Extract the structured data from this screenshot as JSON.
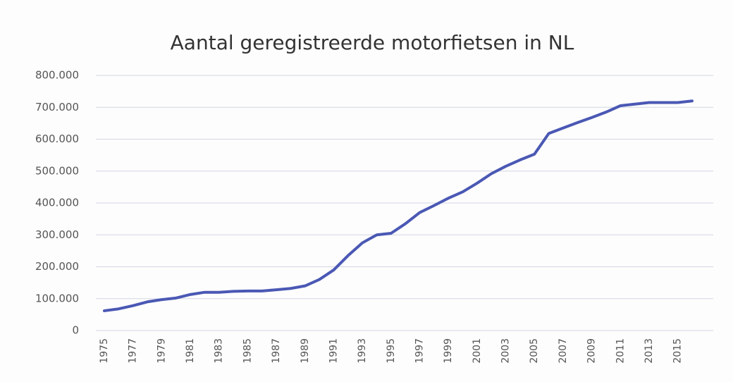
{
  "chart_data": {
    "type": "line",
    "title": "Aantal geregistreerde motorfietsen in NL",
    "categories": [
      "1975",
      null,
      "1977",
      null,
      "1979",
      null,
      "1981",
      null,
      "1983",
      null,
      "1985",
      null,
      "1987",
      null,
      "1989",
      null,
      "1991",
      null,
      "1993",
      null,
      "1995",
      null,
      "1997",
      null,
      "1999",
      null,
      "2001",
      null,
      "2003",
      null,
      "2005",
      null,
      "2007",
      null,
      "2009",
      null,
      "2011",
      null,
      "2013",
      null,
      "2015",
      null
    ],
    "series": [
      {
        "name": null,
        "color": "#4a58b4",
        "values": [
          62000,
          68000,
          78000,
          90000,
          97000,
          102000,
          113000,
          120000,
          120000,
          123000,
          124000,
          124000,
          128000,
          132000,
          140000,
          160000,
          190000,
          235000,
          275000,
          300000,
          305000,
          335000,
          370000,
          392000,
          415000,
          435000,
          462000,
          492000,
          515000,
          535000,
          553000,
          618000,
          635000,
          652000,
          668000,
          685000,
          705000,
          710000,
          715000,
          715000,
          715000,
          720000
        ]
      }
    ],
    "ylim": [
      0,
      800000
    ],
    "yticks": [
      0,
      {
        "value": 100000,
        "label": "100.000"
      },
      {
        "value": 200000,
        "label": "200.000"
      },
      {
        "value": 300000,
        "label": "300.000"
      },
      {
        "value": 400000,
        "label": "400.000"
      },
      {
        "value": 500000,
        "label": "500.000"
      },
      {
        "value": 600000,
        "label": "600.000"
      },
      {
        "value": 700000,
        "label": "700.000"
      },
      {
        "value": 800000,
        "label": "800.000"
      }
    ],
    "grid": true
  }
}
